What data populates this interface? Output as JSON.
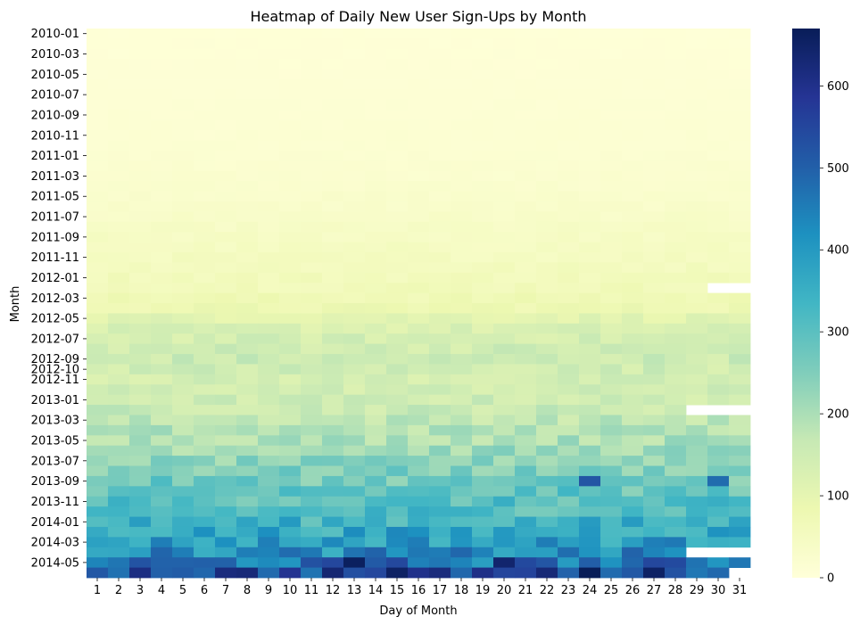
{
  "chart_data": {
    "type": "heatmap",
    "title": "Heatmap of Daily New User Sign-Ups by Month",
    "xlabel": "Day of Month",
    "ylabel": "Month",
    "x_categories": [
      "1",
      "2",
      "3",
      "4",
      "5",
      "6",
      "7",
      "8",
      "9",
      "10",
      "11",
      "12",
      "13",
      "14",
      "15",
      "16",
      "17",
      "18",
      "19",
      "20",
      "21",
      "22",
      "23",
      "24",
      "25",
      "26",
      "27",
      "28",
      "29",
      "30",
      "31"
    ],
    "y_categories": [
      "2010-01",
      "2010-02",
      "2010-03",
      "2010-04",
      "2010-05",
      "2010-06",
      "2010-07",
      "2010-08",
      "2010-09",
      "2010-10",
      "2010-11",
      "2010-12",
      "2011-01",
      "2011-02",
      "2011-03",
      "2011-04",
      "2011-05",
      "2011-06",
      "2011-07",
      "2011-08",
      "2011-09",
      "2011-10",
      "2011-11",
      "2011-12",
      "2012-01",
      "2012-02",
      "2012-03",
      "2012-04",
      "2012-05",
      "2012-06",
      "2012-07",
      "2012-08",
      "2012-09",
      "2012-10",
      "2012-11",
      "2012-12",
      "2013-01",
      "2013-02",
      "2013-03",
      "2013-04",
      "2013-05",
      "2013-06",
      "2013-07",
      "2013-08",
      "2013-09",
      "2013-10",
      "2013-11",
      "2013-12",
      "2014-01",
      "2014-02",
      "2014-03",
      "2014-04",
      "2014-05",
      "2014-06"
    ],
    "y_tick_labels": [
      "2010-01",
      "2010-03",
      "2010-05",
      "2010-07",
      "2010-09",
      "2010-11",
      "2011-01",
      "2011-03",
      "2011-05",
      "2011-07",
      "2011-09",
      "2011-11",
      "2012-01",
      "2012-03",
      "2012-05",
      "2012-07",
      "2012-09",
      "2012-10",
      "2012-11",
      "2013-01",
      "2013-03",
      "2013-05",
      "2013-07",
      "2013-09",
      "2013-11",
      "2014-01",
      "2014-03",
      "2014-05"
    ],
    "y_tick_label_rows": [
      0,
      2,
      4,
      6,
      8,
      10,
      12,
      14,
      16,
      18,
      20,
      22,
      24,
      26,
      28,
      30,
      32,
      33,
      34,
      36,
      38,
      40,
      42,
      44,
      46,
      48,
      50,
      52
    ],
    "monthly_typical_signups": [
      5,
      6,
      6,
      7,
      8,
      9,
      10,
      11,
      12,
      13,
      14,
      15,
      17,
      19,
      21,
      24,
      27,
      30,
      34,
      38,
      42,
      46,
      50,
      55,
      60,
      65,
      72,
      80,
      110,
      125,
      140,
      150,
      155,
      150,
      140,
      145,
      150,
      160,
      175,
      190,
      200,
      215,
      230,
      250,
      270,
      285,
      300,
      315,
      340,
      370,
      395,
      420,
      470,
      560
    ],
    "missing_cells": [
      {
        "month": "2012-02",
        "days": [
          30,
          31
        ]
      },
      {
        "month": "2013-02",
        "days": [
          29,
          30,
          31
        ]
      },
      {
        "month": "2014-04",
        "days": [
          29,
          30,
          31
        ]
      },
      {
        "month": "2014-06",
        "days": [
          31
        ]
      }
    ],
    "notable_cells": [
      {
        "month": "2014-05",
        "day": 13,
        "value": 660
      },
      {
        "month": "2014-05",
        "day": 20,
        "value": 640
      },
      {
        "month": "2014-06",
        "day": 24,
        "value": 670
      },
      {
        "month": "2014-06",
        "day": 16,
        "value": 600
      },
      {
        "month": "2013-09",
        "day": 24,
        "value": 520
      },
      {
        "month": "2013-09",
        "day": 30,
        "value": 480
      }
    ],
    "colorbar": {
      "colormap": "YlGnBu",
      "vmin": 0,
      "vmax": 670,
      "ticks": [
        0,
        100,
        200,
        300,
        400,
        500,
        600
      ]
    }
  }
}
